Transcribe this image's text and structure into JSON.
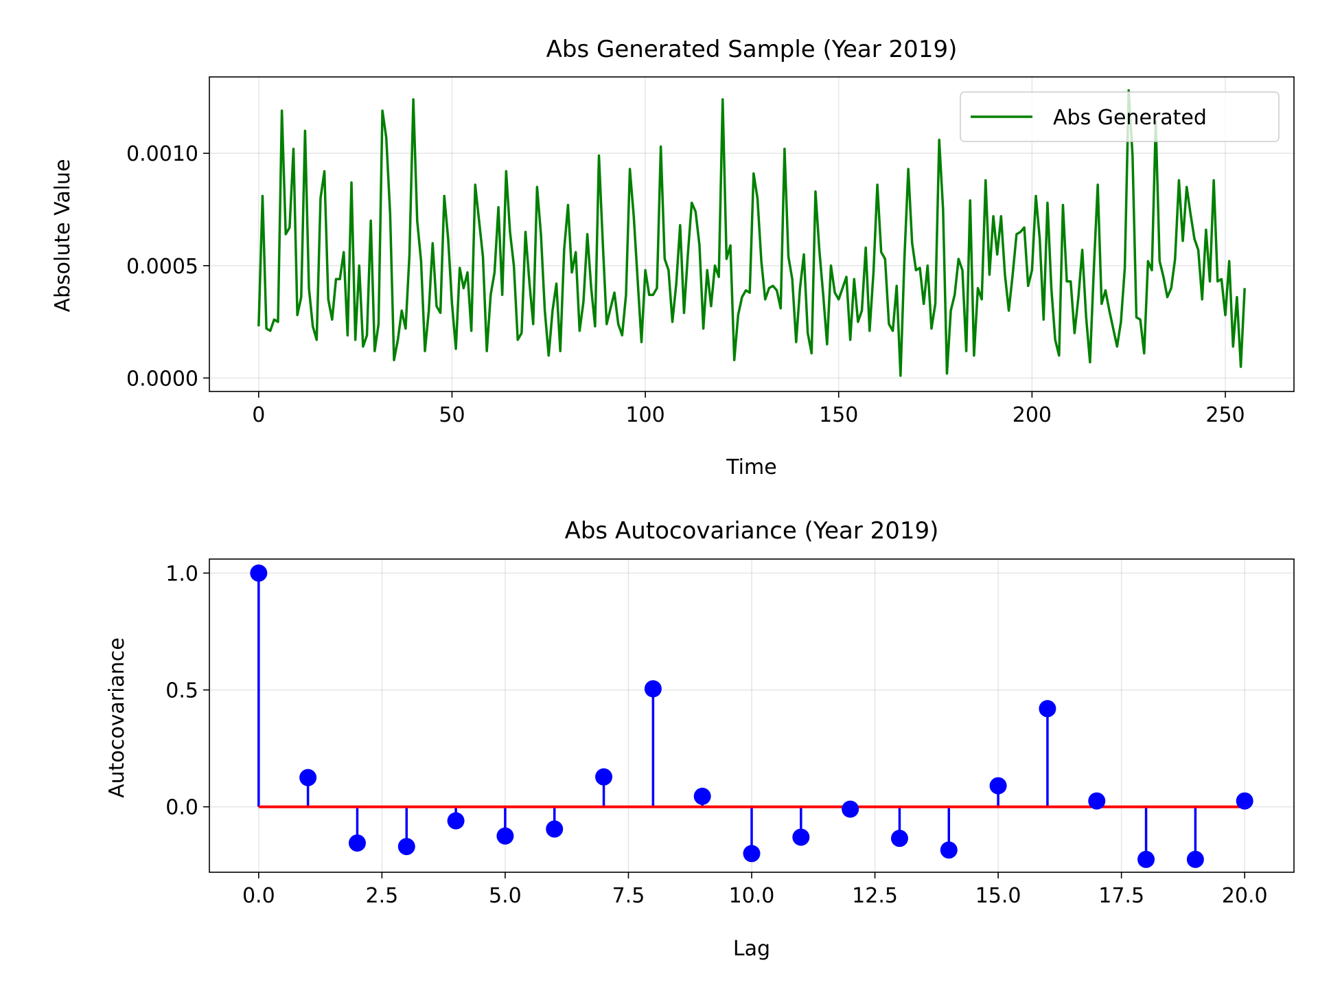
{
  "chart_data": [
    {
      "type": "line",
      "title": "Abs Generated Sample (Year 2019)",
      "xlabel": "Time",
      "ylabel": "Absolute Value",
      "xlim": [
        -12.75,
        267.75
      ],
      "ylim": [
        -6e-05,
        0.00134
      ],
      "xticks": [
        0,
        50,
        100,
        150,
        200,
        250
      ],
      "xtick_labels": [
        "0",
        "50",
        "100",
        "150",
        "200",
        "250"
      ],
      "yticks": [
        0.0,
        0.0005,
        0.001
      ],
      "ytick_labels": [
        "0.0000",
        "0.0005",
        "0.0010"
      ],
      "grid": true,
      "legend": "top-right",
      "series": [
        {
          "name": "Abs Generated",
          "color": "#008000",
          "x_start": 0,
          "values": [
            0.00023,
            0.00081,
            0.00022,
            0.00021,
            0.00026,
            0.00025,
            0.00119,
            0.00064,
            0.00067,
            0.00102,
            0.00028,
            0.00036,
            0.0011,
            0.0004,
            0.00023,
            0.00017,
            0.0008,
            0.00092,
            0.00035,
            0.00026,
            0.00044,
            0.00044,
            0.00056,
            0.00019,
            0.00087,
            0.00017,
            0.0005,
            0.00014,
            0.00019,
            0.0007,
            0.00012,
            0.00024,
            0.00119,
            0.00107,
            0.00073,
            8e-05,
            0.00017,
            0.0003,
            0.00022,
            0.00055,
            0.00124,
            0.0007,
            0.00052,
            0.00012,
            0.0003,
            0.0006,
            0.00032,
            0.00029,
            0.00081,
            0.00062,
            0.00033,
            0.00013,
            0.00049,
            0.0004,
            0.00047,
            0.00021,
            0.00086,
            0.0007,
            0.00054,
            0.00012,
            0.00037,
            0.00047,
            0.00076,
            0.00037,
            0.00092,
            0.00065,
            0.0005,
            0.00017,
            0.0002,
            0.00065,
            0.00043,
            0.00024,
            0.00085,
            0.00064,
            0.0003,
            0.0001,
            0.0003,
            0.00042,
            0.00012,
            0.00057,
            0.00077,
            0.00047,
            0.00056,
            0.00021,
            0.00034,
            0.00064,
            0.0004,
            0.00023,
            0.00099,
            0.0006,
            0.00024,
            0.00031,
            0.00038,
            0.00024,
            0.00019,
            0.00037,
            0.00093,
            0.00072,
            0.00044,
            0.00016,
            0.00048,
            0.00037,
            0.00037,
            0.0004,
            0.00103,
            0.00053,
            0.00048,
            0.00025,
            0.00042,
            0.00068,
            0.00029,
            0.00055,
            0.00078,
            0.00074,
            0.00059,
            0.00022,
            0.00048,
            0.00032,
            0.0005,
            0.00045,
            0.00124,
            0.00053,
            0.00059,
            8e-05,
            0.00028,
            0.00036,
            0.00039,
            0.00038,
            0.00091,
            0.0008,
            0.00052,
            0.00035,
            0.0004,
            0.00041,
            0.00039,
            0.00031,
            0.00102,
            0.00054,
            0.00044,
            0.00016,
            0.0004,
            0.00055,
            0.0002,
            0.00011,
            0.00083,
            0.00057,
            0.00037,
            0.00015,
            0.0005,
            0.00038,
            0.00035,
            0.0004,
            0.00045,
            0.00017,
            0.00044,
            0.00025,
            0.0003,
            0.00058,
            0.00021,
            0.00047,
            0.00086,
            0.00056,
            0.00053,
            0.00024,
            0.00021,
            0.00041,
            1e-05,
            0.00053,
            0.00093,
            0.0006,
            0.00048,
            0.00049,
            0.00033,
            0.0005,
            0.00022,
            0.00033,
            0.00106,
            0.00075,
            2e-05,
            0.0003,
            0.00037,
            0.00053,
            0.00048,
            0.00012,
            0.00079,
            0.0001,
            0.0004,
            0.00035,
            0.00088,
            0.00046,
            0.00072,
            0.00055,
            0.00072,
            0.00046,
            0.0003,
            0.00046,
            0.00064,
            0.00065,
            0.00067,
            0.00041,
            0.00048,
            0.00081,
            0.00062,
            0.00026,
            0.00078,
            0.0004,
            0.00017,
            0.0001,
            0.00077,
            0.00043,
            0.00043,
            0.0002,
            0.00036,
            0.00057,
            0.00027,
            7e-05,
            0.00049,
            0.00086,
            0.00033,
            0.00039,
            0.0003,
            0.00022,
            0.00014,
            0.00025,
            0.00049,
            0.00128,
            0.00099,
            0.00027,
            0.00026,
            0.00011,
            0.00052,
            0.00048,
            0.00114,
            0.00052,
            0.00045,
            0.00036,
            0.0004,
            0.00053,
            0.00088,
            0.00061,
            0.00085,
            0.00073,
            0.00062,
            0.00057,
            0.00035,
            0.00066,
            0.00043,
            0.00088,
            0.00043,
            0.00044,
            0.00028,
            0.00052,
            0.00014,
            0.00036,
            5e-05,
            0.0004
          ]
        }
      ]
    },
    {
      "type": "stem",
      "title": "Abs Autocovariance (Year 2019)",
      "xlabel": "Lag",
      "ylabel": "Autocovariance",
      "xlim": [
        -1.0,
        21.0
      ],
      "ylim": [
        -0.28,
        1.06
      ],
      "xticks": [
        0.0,
        2.5,
        5.0,
        7.5,
        10.0,
        12.5,
        15.0,
        17.5,
        20.0
      ],
      "xtick_labels": [
        "0.0",
        "2.5",
        "5.0",
        "7.5",
        "10.0",
        "12.5",
        "15.0",
        "17.5",
        "20.0"
      ],
      "yticks": [
        0.0,
        0.5,
        1.0
      ],
      "ytick_labels": [
        "0.0",
        "0.5",
        "1.0"
      ],
      "grid": true,
      "stem_color": "#0000ff",
      "baseline_color": "#ff0000",
      "lags": [
        0,
        1,
        2,
        3,
        4,
        5,
        6,
        7,
        8,
        9,
        10,
        11,
        12,
        13,
        14,
        15,
        16,
        17,
        18,
        19,
        20
      ],
      "values": [
        1.0,
        0.125,
        -0.155,
        -0.17,
        -0.06,
        -0.125,
        -0.095,
        0.128,
        0.505,
        0.045,
        -0.2,
        -0.13,
        -0.01,
        -0.135,
        -0.185,
        0.09,
        0.42,
        0.025,
        -0.225,
        -0.225,
        0.025
      ]
    }
  ]
}
